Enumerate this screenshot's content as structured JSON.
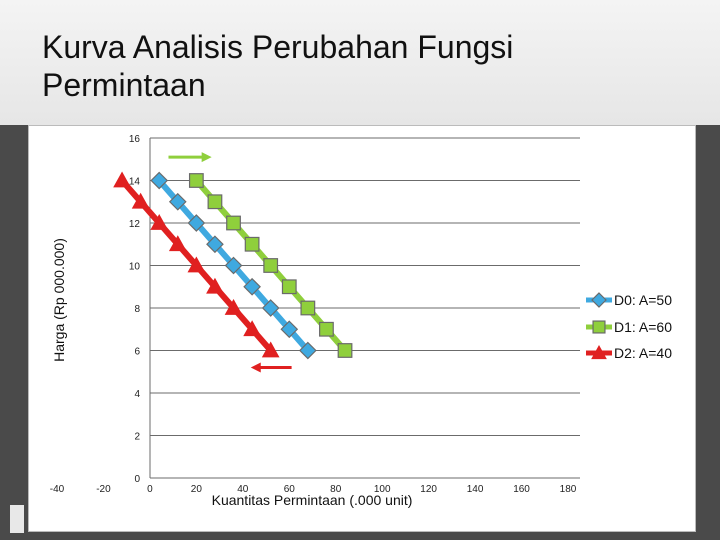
{
  "slide": {
    "title": "Kurva Analisis Perubahan Fungsi Permintaan"
  },
  "chart_data": {
    "type": "line",
    "title": "",
    "xlabel": "Kuantitas Permintaan (.000 unit)",
    "ylabel": "Harga (Rp 000.000)",
    "xlim": [
      -40,
      180
    ],
    "ylim": [
      0,
      16
    ],
    "x_ticks": [
      "-40",
      "-20",
      "0",
      "20",
      "40",
      "60",
      "80",
      "100",
      "120",
      "140",
      "160",
      "180"
    ],
    "y_ticks": [
      "0",
      "2",
      "4",
      "6",
      "8",
      "10",
      "12",
      "14",
      "16"
    ],
    "grid": "horizontal",
    "legend_position": "right",
    "series": [
      {
        "name": "D0: A=50",
        "color": "#3fa9e0",
        "marker": "diamond",
        "points": [
          [
            4,
            14
          ],
          [
            12,
            13
          ],
          [
            20,
            12
          ],
          [
            28,
            11
          ],
          [
            36,
            10
          ],
          [
            44,
            9
          ],
          [
            52,
            8
          ],
          [
            60,
            7
          ],
          [
            68,
            6
          ]
        ]
      },
      {
        "name": "D1: A=60",
        "color": "#8fcf3c",
        "marker": "square",
        "points": [
          [
            20,
            14
          ],
          [
            28,
            13
          ],
          [
            36,
            12
          ],
          [
            44,
            11
          ],
          [
            52,
            10
          ],
          [
            60,
            9
          ],
          [
            68,
            8
          ],
          [
            76,
            7
          ],
          [
            84,
            6
          ]
        ]
      },
      {
        "name": "D2: A=40",
        "color": "#e02020",
        "marker": "triangle",
        "points": [
          [
            -12,
            14
          ],
          [
            -4,
            13
          ],
          [
            4,
            12
          ],
          [
            12,
            11
          ],
          [
            20,
            10
          ],
          [
            28,
            9
          ],
          [
            36,
            8
          ],
          [
            44,
            7
          ],
          [
            52,
            6
          ]
        ]
      }
    ],
    "annotations": [
      {
        "type": "arrow",
        "direction": "right",
        "color": "#8fcf3c",
        "x_from": 8,
        "x_to": 24,
        "y": 15.1
      },
      {
        "type": "arrow",
        "direction": "left",
        "color": "#e02020",
        "x_from": 61,
        "x_to": 46,
        "y": 5.2
      }
    ]
  }
}
